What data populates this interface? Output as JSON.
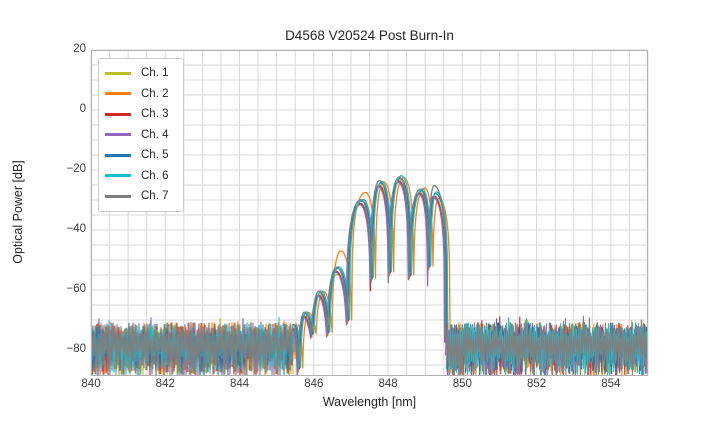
{
  "chart_data": {
    "type": "line",
    "title": "D4568 V20524 Post Burn-In",
    "xlabel": "Wavelength [nm]",
    "ylabel": "Optical Power [dB]",
    "xlim": [
      840,
      855
    ],
    "ylim": [
      -88.67,
      20
    ],
    "xticks": [
      {
        "v": 840,
        "label": "840"
      },
      {
        "v": 842,
        "label": "842"
      },
      {
        "v": 844,
        "label": "844"
      },
      {
        "v": 846,
        "label": "846"
      },
      {
        "v": 848,
        "label": "848"
      },
      {
        "v": 850,
        "label": "850"
      },
      {
        "v": 852,
        "label": "852"
      },
      {
        "v": 854,
        "label": "854"
      }
    ],
    "yticks": [
      {
        "v": 20,
        "label": "20"
      },
      {
        "v": 0,
        "label": "0"
      },
      {
        "v": -20,
        "label": "−20"
      },
      {
        "v": -40,
        "label": "−40"
      },
      {
        "v": -60,
        "label": "−60"
      },
      {
        "v": -80,
        "label": "−80"
      }
    ],
    "grid": {
      "x_step": 0.5,
      "y_step": 5,
      "color": "#d9d9d9",
      "spine_color": "#b0b0b0"
    },
    "legend_position": "upper left",
    "noise": {
      "gap_start": 845.46,
      "gap_end": 849.6,
      "top_mean": -73.5,
      "top_jitter": 2.6,
      "spike_chance": 0.06,
      "spike_max": 3.5,
      "bottom_top": -80,
      "bottom_span": 9
    },
    "envelope_anchors": [
      [
        845.48,
        -71.5,
        "p"
      ],
      [
        845.61,
        -86.0,
        "d"
      ],
      [
        845.77,
        -67.5,
        "p"
      ],
      [
        845.97,
        -74.5,
        "d"
      ],
      [
        846.17,
        -60.5,
        "p"
      ],
      [
        846.4,
        -74.0,
        "d"
      ],
      [
        846.64,
        -52.5,
        "p"
      ],
      [
        846.93,
        -70.0,
        "d"
      ],
      [
        847.3,
        -30.0,
        "p"
      ],
      [
        847.57,
        -56.0,
        "d"
      ],
      [
        847.8,
        -24.0,
        "p"
      ],
      [
        848.06,
        -54.0,
        "d"
      ],
      [
        848.33,
        -22.5,
        "p"
      ],
      [
        848.6,
        -55.0,
        "d"
      ],
      [
        848.9,
        -26.5,
        "p"
      ],
      [
        849.12,
        -52.0,
        "d"
      ],
      [
        849.27,
        -27.5,
        "p"
      ],
      [
        849.58,
        -76.0,
        "d"
      ]
    ],
    "series": [
      {
        "name": "Ch. 1",
        "color": "#bcbd22",
        "x_shift": -0.02,
        "y_shift": -1.3,
        "boosts": {
          "6": -1.0
        }
      },
      {
        "name": "Ch. 2",
        "color": "#ff7f0e",
        "x_shift": 0.09,
        "y_shift": 0.0,
        "boosts": {
          "6": 5.5,
          "8": 2.5,
          "14": 0.5,
          "16": -2.0
        }
      },
      {
        "name": "Ch. 3",
        "color": "#d62728",
        "x_shift": -0.045,
        "y_shift": -1.2,
        "boosts": {
          "9": -3.0
        }
      },
      {
        "name": "Ch. 4",
        "color": "#9467bd",
        "x_shift": -0.055,
        "y_shift": -1.6,
        "boosts": {
          "1": -2.0,
          "11": -2.0,
          "15": -5.0
        }
      },
      {
        "name": "Ch. 5",
        "color": "#1f77b4",
        "x_shift": 0.005,
        "y_shift": -0.3,
        "boosts": {}
      },
      {
        "name": "Ch. 6",
        "color": "#17becf",
        "x_shift": 0.03,
        "y_shift": 0.2,
        "boosts": {
          "12": 0.4
        }
      },
      {
        "name": "Ch. 7",
        "color": "#7f7f7f",
        "x_shift": -0.03,
        "y_shift": 0.1,
        "boosts": {
          "16": 2.2,
          "10": 0.4
        }
      }
    ]
  }
}
